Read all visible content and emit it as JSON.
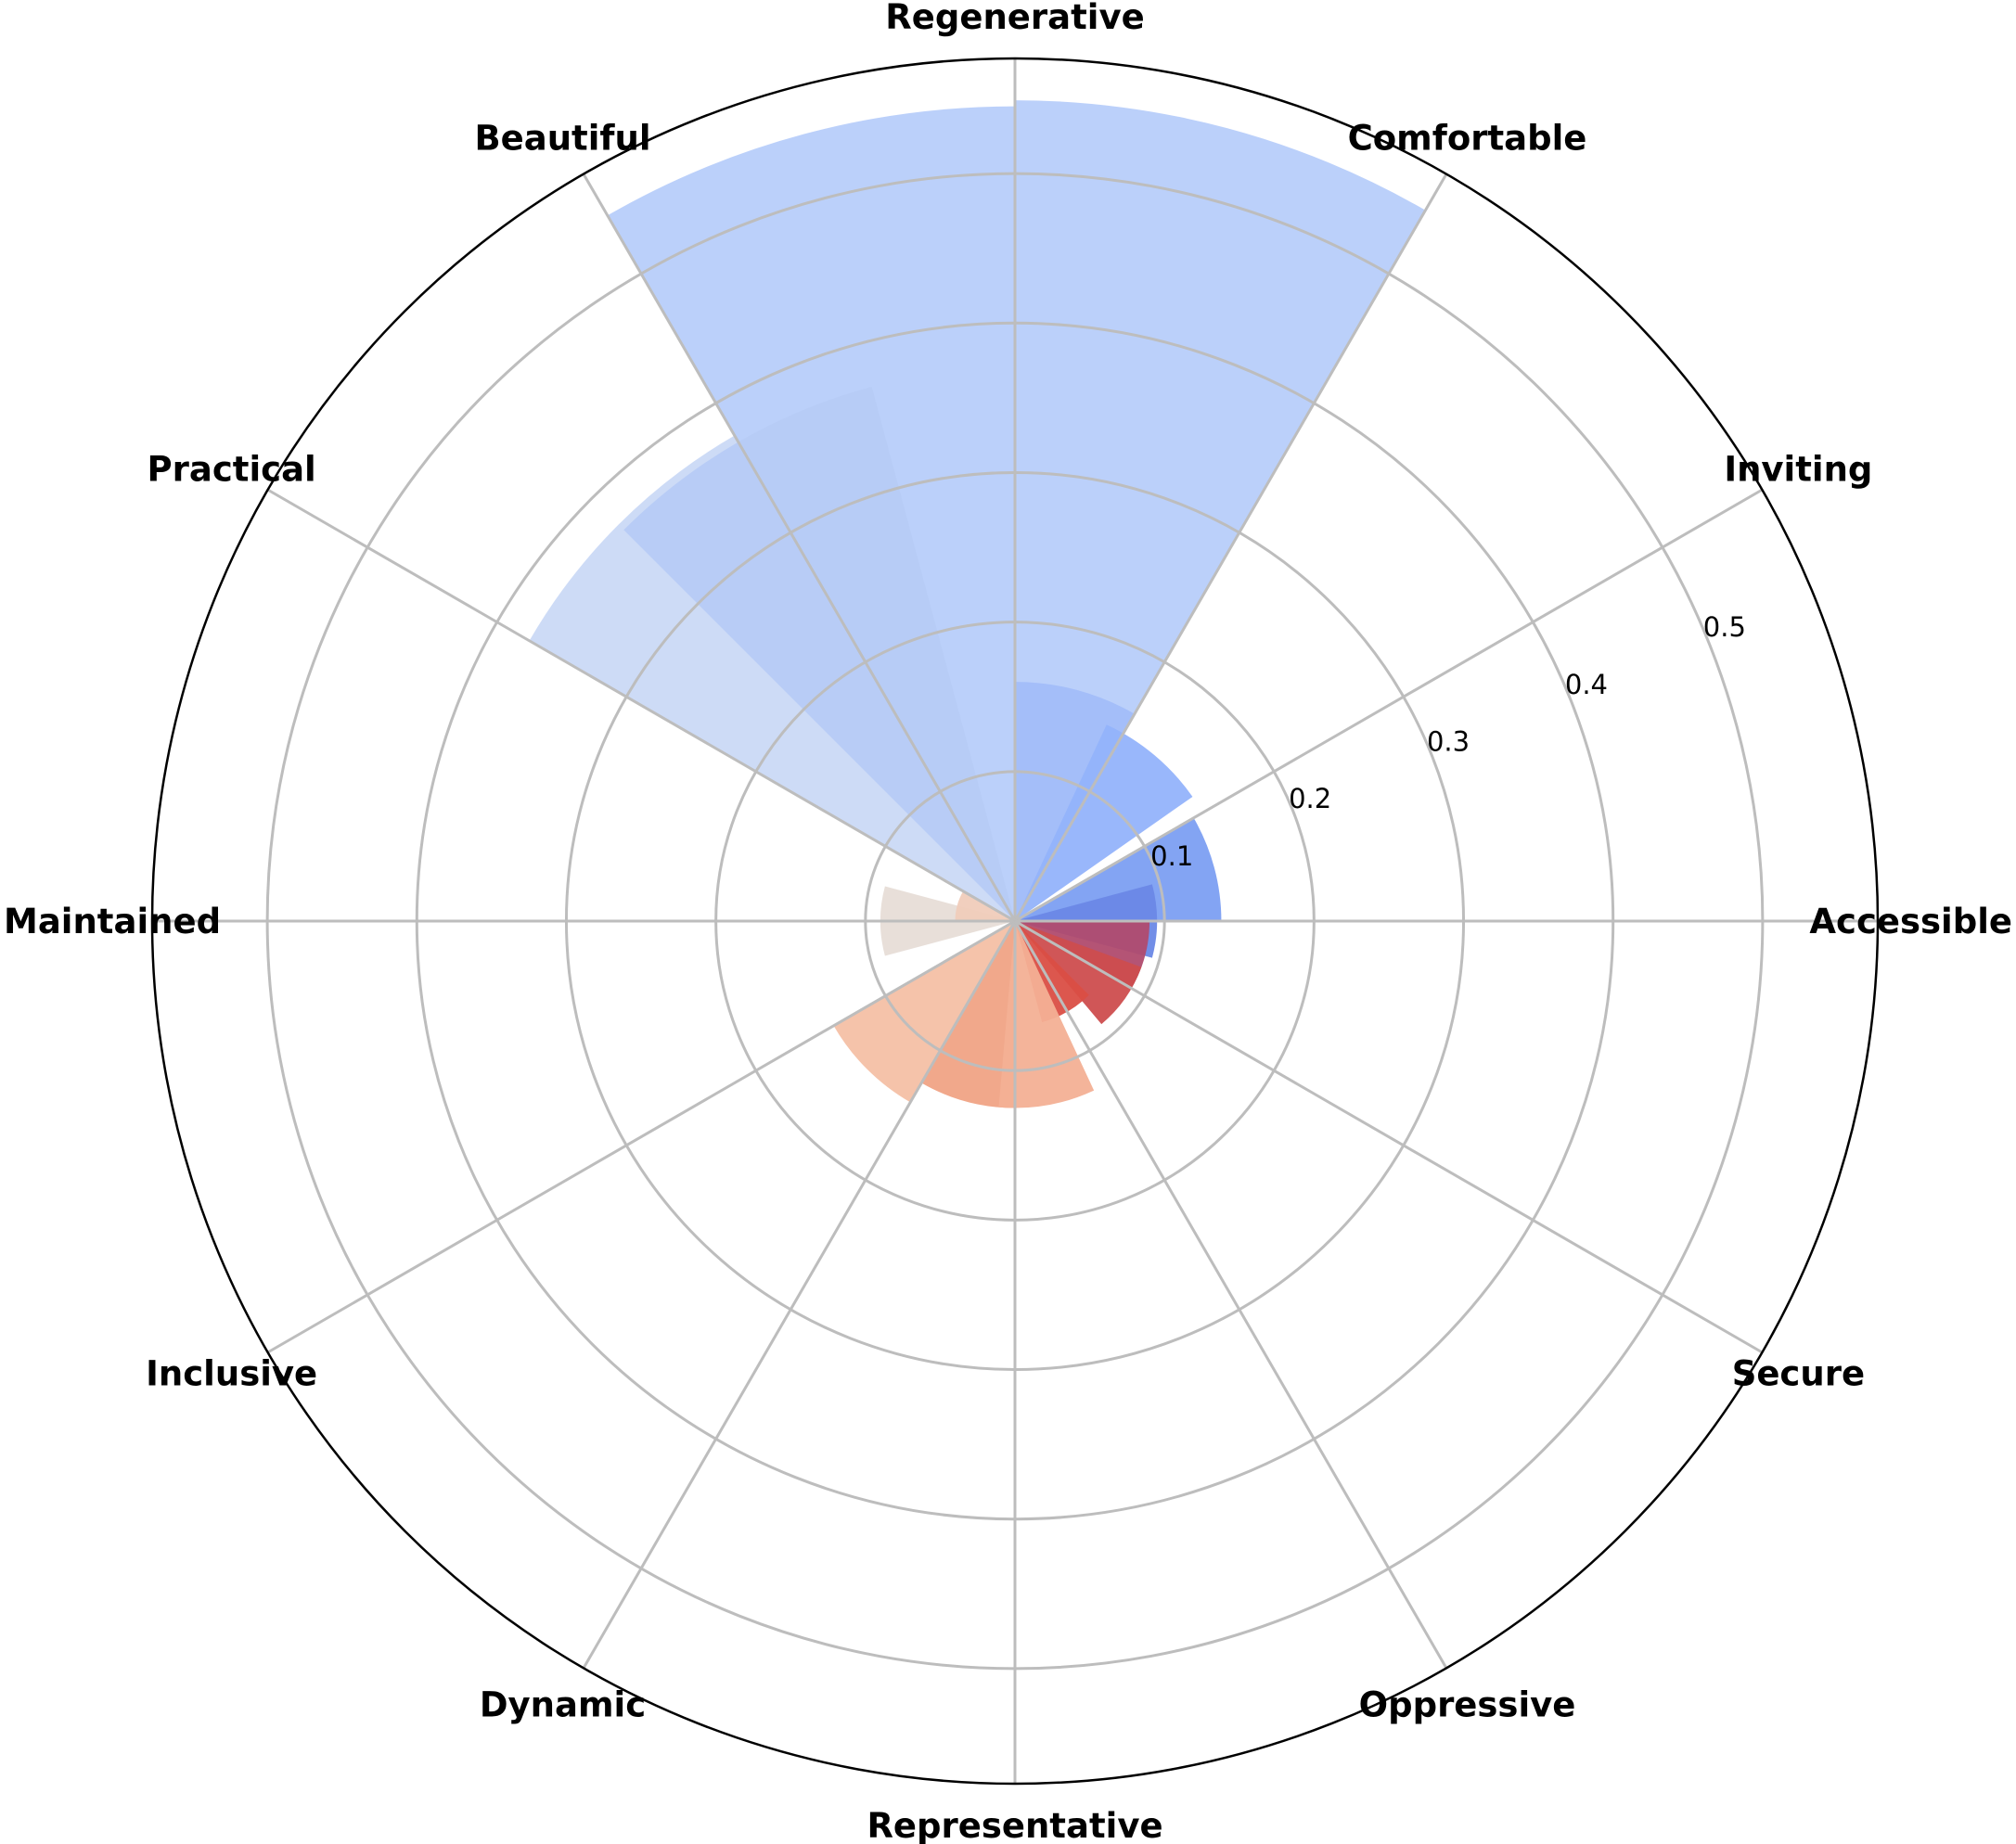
{
  "chart_data": {
    "type": "polar-bar",
    "categories": [
      "Accessible",
      "Inviting",
      "Comfortable",
      "Regenerative",
      "Beautiful",
      "Practical",
      "Maintained",
      "Inclusive",
      "Dynamic",
      "Representative",
      "Oppressive",
      "Secure"
    ],
    "r_ticks": [
      {
        "value": 0.1,
        "label": "0.1"
      },
      {
        "value": 0.2,
        "label": "0.2"
      },
      {
        "value": 0.3,
        "label": "0.3"
      },
      {
        "value": 0.4,
        "label": "0.4"
      },
      {
        "value": 0.5,
        "label": "0.5"
      }
    ],
    "rlim": [
      0,
      0.577
    ],
    "grid": true,
    "bar_width_degrees": 30,
    "bars": [
      {
        "angle_deg": 105,
        "value": 0.545,
        "color": "#b7cdfa"
      },
      {
        "angle_deg": 75,
        "value": 0.549,
        "color": "#b7cdfa"
      },
      {
        "angle_deg": 135,
        "value": 0.375,
        "color": "#cad9f6"
      },
      {
        "angle_deg": 120,
        "value": 0.37,
        "color": "#b6cbf6"
      },
      {
        "angle_deg": 75,
        "value": 0.16,
        "color": "#a2bdf9"
      },
      {
        "angle_deg": 50,
        "value": 0.145,
        "color": "#93b3fb"
      },
      {
        "angle_deg": 15,
        "value": 0.138,
        "color": "#7c9ff2"
      },
      {
        "angle_deg": 0,
        "value": 0.095,
        "color": "#6a88e6"
      },
      {
        "angle_deg": -15,
        "value": 0.09,
        "color": "#b04b6e"
      },
      {
        "angle_deg": -35,
        "value": 0.09,
        "color": "#cd4d4e"
      },
      {
        "angle_deg": -60,
        "value": 0.07,
        "color": "#da4e44"
      },
      {
        "angle_deg": 180,
        "value": 0.09,
        "color": "#e7ddd7"
      },
      {
        "angle_deg": 165,
        "value": 0.04,
        "color": "#f0ccbb"
      },
      {
        "angle_deg": -135,
        "value": 0.14,
        "color": "#f4c0a5"
      },
      {
        "angle_deg": -105,
        "value": 0.125,
        "color": "#f0a385"
      },
      {
        "angle_deg": -80,
        "value": 0.125,
        "color": "#f3b095"
      }
    ]
  }
}
